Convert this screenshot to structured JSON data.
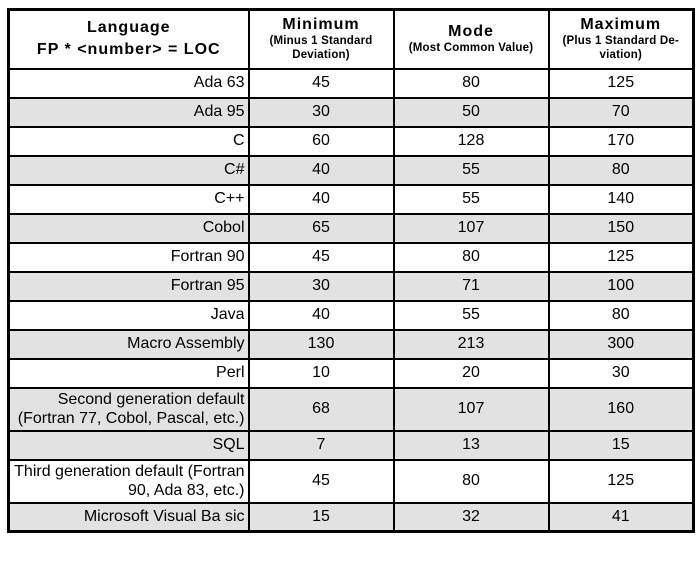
{
  "table": {
    "header": {
      "language_line1": "Language",
      "language_line2": "FP * <number> = LOC",
      "columns": [
        {
          "title": "Minimum",
          "subtitle": "(Minus 1 Standard Deviation)"
        },
        {
          "title": "Mode",
          "subtitle": "(Most Common Value)"
        },
        {
          "title": "Maximum",
          "subtitle": "(Plus 1 Standard De-viation)"
        }
      ]
    },
    "rows": [
      {
        "language": "Ada 63",
        "minimum": "45",
        "mode": "80",
        "maximum": "125",
        "shaded": false
      },
      {
        "language": "Ada 95",
        "minimum": "30",
        "mode": "50",
        "maximum": "70",
        "shaded": true
      },
      {
        "language": "C",
        "minimum": "60",
        "mode": "128",
        "maximum": "170",
        "shaded": false
      },
      {
        "language": "C#",
        "minimum": "40",
        "mode": "55",
        "maximum": "80",
        "shaded": true
      },
      {
        "language": "C++",
        "minimum": "40",
        "mode": "55",
        "maximum": "140",
        "shaded": false
      },
      {
        "language": "Cobol",
        "minimum": "65",
        "mode": "107",
        "maximum": "150",
        "shaded": true
      },
      {
        "language": "Fortran 90",
        "minimum": "45",
        "mode": "80",
        "maximum": "125",
        "shaded": false
      },
      {
        "language": "Fortran 95",
        "minimum": "30",
        "mode": "71",
        "maximum": "100",
        "shaded": true
      },
      {
        "language": "Java",
        "minimum": "40",
        "mode": "55",
        "maximum": "80",
        "shaded": false
      },
      {
        "language": "Macro Assembly",
        "minimum": "130",
        "mode": "213",
        "maximum": "300",
        "shaded": true
      },
      {
        "language": "Perl",
        "minimum": "10",
        "mode": "20",
        "maximum": "30",
        "shaded": false
      },
      {
        "language": "Second generation default (Fortran 77, Cobol, Pascal, etc.)",
        "minimum": "68",
        "mode": "107",
        "maximum": "160",
        "shaded": true
      },
      {
        "language": "SQL",
        "minimum": "7",
        "mode": "13",
        "maximum": "15",
        "shaded": true
      },
      {
        "language": "Third generation default (Fortran 90, Ada 83, etc.)",
        "minimum": "45",
        "mode": "80",
        "maximum": "125",
        "shaded": false
      },
      {
        "language": "Microsoft Visual Ba sic",
        "minimum": "15",
        "mode": "32",
        "maximum": "41",
        "shaded": true
      }
    ],
    "colors": {
      "shaded_row": "#e2e2e2",
      "border": "#000000",
      "background": "#ffffff",
      "text": "#000000"
    }
  }
}
